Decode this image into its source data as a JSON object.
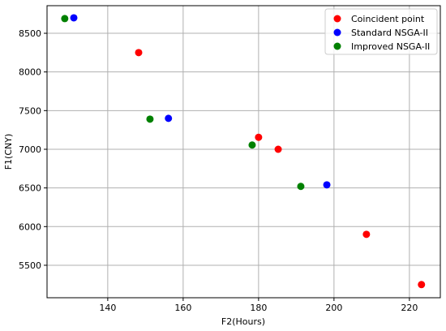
{
  "chart_data": {
    "type": "scatter",
    "x_label": "F2(Hours)",
    "y_label": "F1(CNY)",
    "xlim": [
      123.9,
      228.2
    ],
    "ylim": [
      5080,
      8857
    ],
    "xticks": [
      140,
      160,
      180,
      200,
      220
    ],
    "yticks": [
      5500,
      6000,
      6500,
      7000,
      7500,
      8000,
      8500
    ],
    "grid": true,
    "legend": "upper right",
    "series": [
      {
        "name": "Coincident point",
        "color": "#ff0000",
        "x": [
          148.2,
          180,
          185.2,
          208.6,
          223.2
        ],
        "values": [
          8250,
          7155,
          7000,
          5900,
          5250
        ]
      },
      {
        "name": "Standard NSGA-II",
        "color": "#0000ff",
        "x": [
          131,
          156.1,
          198.1
        ],
        "values": [
          8700,
          7400,
          6540
        ]
      },
      {
        "name": "Improved NSGA-II",
        "color": "#008000",
        "x": [
          128.6,
          151.2,
          178.3,
          191.2
        ],
        "values": [
          8690,
          7390,
          7055,
          6520
        ]
      }
    ]
  }
}
